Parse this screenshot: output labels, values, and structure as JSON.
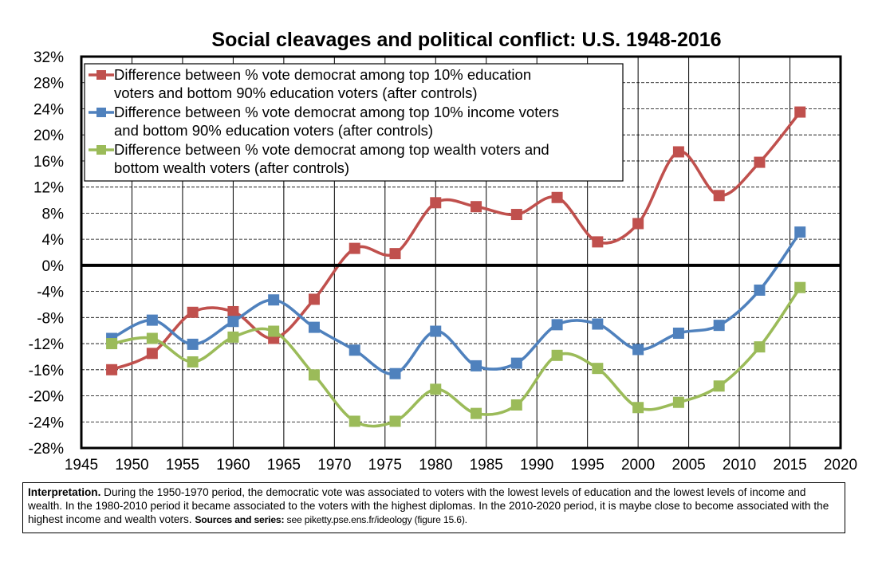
{
  "chart_data": {
    "type": "line",
    "title": "Social cleavages and political conflict: U.S. 1948-2016",
    "xlabel": "",
    "ylabel": "",
    "xlim": [
      1945,
      2020
    ],
    "ylim": [
      -28,
      32
    ],
    "xticks": [
      1945,
      1950,
      1955,
      1960,
      1965,
      1970,
      1975,
      1980,
      1985,
      1990,
      1995,
      2000,
      2005,
      2010,
      2015,
      2020
    ],
    "yticks": [
      -28,
      -24,
      -20,
      -16,
      -12,
      -8,
      -4,
      0,
      4,
      8,
      12,
      16,
      20,
      24,
      28,
      32
    ],
    "x": [
      1948,
      1952,
      1956,
      1960,
      1964,
      1968,
      1972,
      1976,
      1980,
      1984,
      1988,
      1992,
      1996,
      2000,
      2004,
      2008,
      2012,
      2016
    ],
    "grid": true,
    "legend_position": "top-left",
    "series": [
      {
        "name": "Difference between % vote democrat among top 10% education voters and bottom 90% education voters (after controls)",
        "legend_lines": [
          "Difference between % vote democrat among top 10% education",
          "voters and bottom 90% education voters (after controls)"
        ],
        "color": "#c0504d",
        "values": [
          -16.0,
          -13.5,
          -7.2,
          -7.1,
          -11.2,
          -5.2,
          2.6,
          1.8,
          9.6,
          9.0,
          7.8,
          10.4,
          3.6,
          6.4,
          17.4,
          10.7,
          15.8,
          23.5
        ]
      },
      {
        "name": "Difference between % vote democrat among top 10% income voters and bottom 90% education voters (after controls)",
        "legend_lines": [
          "Difference between % vote democrat among top 10% income voters",
          "and bottom 90% education voters (after controls)"
        ],
        "color": "#4f81bd",
        "values": [
          -11.2,
          -8.4,
          -12.1,
          -8.6,
          -5.3,
          -9.5,
          -13.0,
          -16.6,
          -10.1,
          -15.4,
          -15.0,
          -9.1,
          -9.0,
          -12.9,
          -10.4,
          -9.2,
          -3.8,
          5.1
        ]
      },
      {
        "name": "Difference between % vote democrat among top wealth voters and bottom wealth voters (after controls)",
        "legend_lines": [
          "Difference between % vote democrat among top wealth voters and",
          "bottom wealth voters (after controls)"
        ],
        "color": "#9bbb59",
        "values": [
          -12.0,
          -11.2,
          -14.8,
          -11.0,
          -10.1,
          -16.8,
          -23.9,
          -23.9,
          -19.0,
          -22.7,
          -21.4,
          -13.8,
          -15.8,
          -21.8,
          -21.0,
          -18.5,
          -12.5,
          -3.4
        ]
      }
    ]
  },
  "note": {
    "lead": "Interpretation.",
    "body": " During the 1950-1970 period, the democratic vote was associated to voters with the lowest levels of education and the lowest levels of income and wealth. In the 1980-2010 period it became associated to the voters with the highest diplomas. In the 2010-2020 period, it is maybe close to become associated with the highest income and wealth voters. ",
    "sources_label": "Sources and series:",
    "sources_text": " see piketty.pse.ens.fr/ideology (figure 15.6)."
  }
}
